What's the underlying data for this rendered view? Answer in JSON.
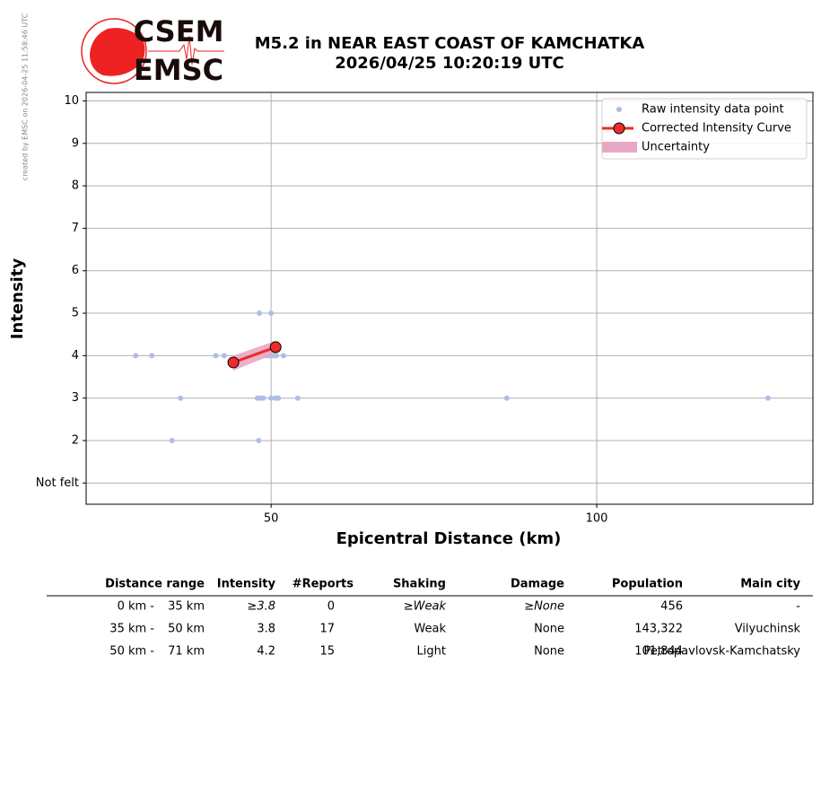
{
  "credit": "created by EMSC on 2026-04-25 11:58:46 UTC",
  "logo": {
    "top": "CSEM",
    "bottom": "EMSC"
  },
  "chart_data": {
    "type": "scatter",
    "title": [
      "M5.2 in NEAR EAST COAST OF KAMCHATKA",
      "2026/04/25 10:20:19 UTC"
    ],
    "x_label": "Epicentral Distance (km)",
    "y_label": "Intensity",
    "xlim": [
      21.6,
      133.2
    ],
    "ylim": [
      0.5,
      10.2
    ],
    "xticks": [
      50,
      100
    ],
    "yticks": [
      {
        "value": 1,
        "label": "Not felt"
      },
      2,
      3,
      4,
      5,
      6,
      7,
      8,
      9,
      10
    ],
    "grid": true,
    "legend": "upper right",
    "series": [
      {
        "name": "Raw intensity data point",
        "type": "scatter",
        "color": "#aebde8",
        "x": [
          29.2,
          31.7,
          41.5,
          42.8,
          49.2,
          49.7,
          50.3,
          50.8,
          51.9,
          36.1,
          34.8,
          48.2,
          50.0,
          48.1,
          47.9,
          48.3,
          48.8,
          50.0,
          50.7,
          51.1,
          54.1,
          86.2,
          126.3
        ],
        "values": [
          4,
          4,
          4,
          4,
          4,
          4,
          4,
          4,
          4,
          3,
          2,
          5,
          5,
          2,
          3,
          3,
          3,
          3,
          3,
          3,
          3,
          3,
          3
        ]
      },
      {
        "name": "Uncertainty",
        "type": "band",
        "color": "#e8a8c4",
        "x": [
          44.2,
          50.7
        ],
        "lower": [
          3.65,
          4.05
        ],
        "upper": [
          4.0,
          4.35
        ]
      },
      {
        "name": "Corrected Intensity Curve",
        "type": "line",
        "color": "#ee2a2a",
        "x": [
          44.2,
          50.7
        ],
        "values": [
          3.84,
          4.2
        ]
      }
    ]
  },
  "table": {
    "headers": [
      "Distance range",
      "Intensity",
      "#Reports",
      "Shaking",
      "Damage",
      "Population",
      "Main city"
    ],
    "rows": [
      [
        "0 km -",
        "35 km",
        "≥3.8",
        "0",
        "≥Weak",
        "≥None",
        "456",
        "-"
      ],
      [
        "35 km -",
        "50 km",
        "3.8",
        "17",
        "Weak",
        "None",
        "143,322",
        "Vilyuchinsk"
      ],
      [
        "50 km -",
        "71 km",
        "4.2",
        "15",
        "Light",
        "None",
        "101,844",
        "Petropavlovsk-Kamchatsky"
      ]
    ]
  }
}
